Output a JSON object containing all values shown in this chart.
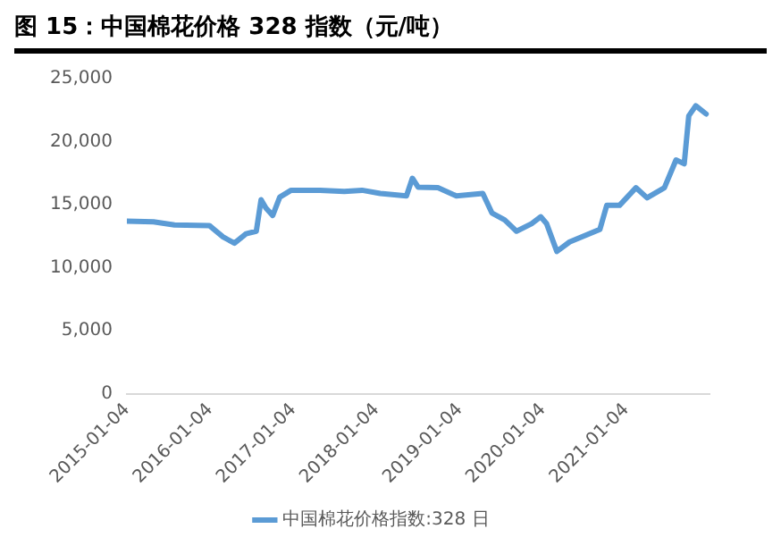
{
  "chart_data": {
    "type": "line",
    "title": "图 15：中国棉花价格 328 指数（元/吨）",
    "x": [
      "2015-01-04",
      "2015-05-01",
      "2015-08-01",
      "2016-01-01",
      "2016-03-01",
      "2016-04-20",
      "2016-06-10",
      "2016-07-25",
      "2016-08-15",
      "2016-09-05",
      "2016-10-05",
      "2016-11-05",
      "2016-12-25",
      "2017-05-01",
      "2017-08-15",
      "2017-11-01",
      "2018-01-20",
      "2018-05-15",
      "2018-06-10",
      "2018-07-05",
      "2018-09-30",
      "2018-12-20",
      "2019-04-15",
      "2019-05-25",
      "2019-07-20",
      "2019-09-10",
      "2019-11-15",
      "2019-12-25",
      "2020-01-20",
      "2020-03-05",
      "2020-04-30",
      "2020-09-10",
      "2020-10-10",
      "2020-12-05",
      "2021-02-15",
      "2021-04-05",
      "2021-06-20",
      "2021-08-10",
      "2021-09-15",
      "2021-10-05",
      "2021-11-05",
      "2021-12-20"
    ],
    "series": [
      {
        "name": "中国棉花价格指数:328 日",
        "color": "#5b9bd5",
        "values": [
          13700,
          13650,
          13400,
          13350,
          12450,
          11950,
          12700,
          12900,
          15400,
          14750,
          14150,
          15600,
          16150,
          16150,
          16050,
          16150,
          15900,
          15700,
          17100,
          16400,
          16350,
          15700,
          15900,
          14350,
          13800,
          12900,
          13500,
          14050,
          13500,
          11300,
          12050,
          13050,
          14950,
          14950,
          16350,
          15550,
          16350,
          18550,
          18250,
          22050,
          22850,
          22200
        ]
      }
    ],
    "xlim": [
      "2015-01-04",
      "2022-01-04"
    ],
    "xticks": [
      {
        "value": "2015-01-04",
        "label": "2015-01-04"
      },
      {
        "value": "2016-01-04",
        "label": "2016-01-04"
      },
      {
        "value": "2017-01-04",
        "label": "2017-01-04"
      },
      {
        "value": "2018-01-04",
        "label": "2018-01-04"
      },
      {
        "value": "2019-01-04",
        "label": "2019-01-04"
      },
      {
        "value": "2020-01-04",
        "label": "2020-01-04"
      },
      {
        "value": "2021-01-04",
        "label": "2021-01-04"
      }
    ],
    "ylim": [
      0,
      25000
    ],
    "yticks": [
      {
        "value": 0,
        "label": "0"
      },
      {
        "value": 5000,
        "label": "5,000"
      },
      {
        "value": 10000,
        "label": "10,000"
      },
      {
        "value": 15000,
        "label": "15,000"
      },
      {
        "value": 20000,
        "label": "20,000"
      },
      {
        "value": 25000,
        "label": "25,000"
      }
    ],
    "grid": false,
    "legend": "bottom",
    "marker": "none",
    "line_style": "solid"
  }
}
